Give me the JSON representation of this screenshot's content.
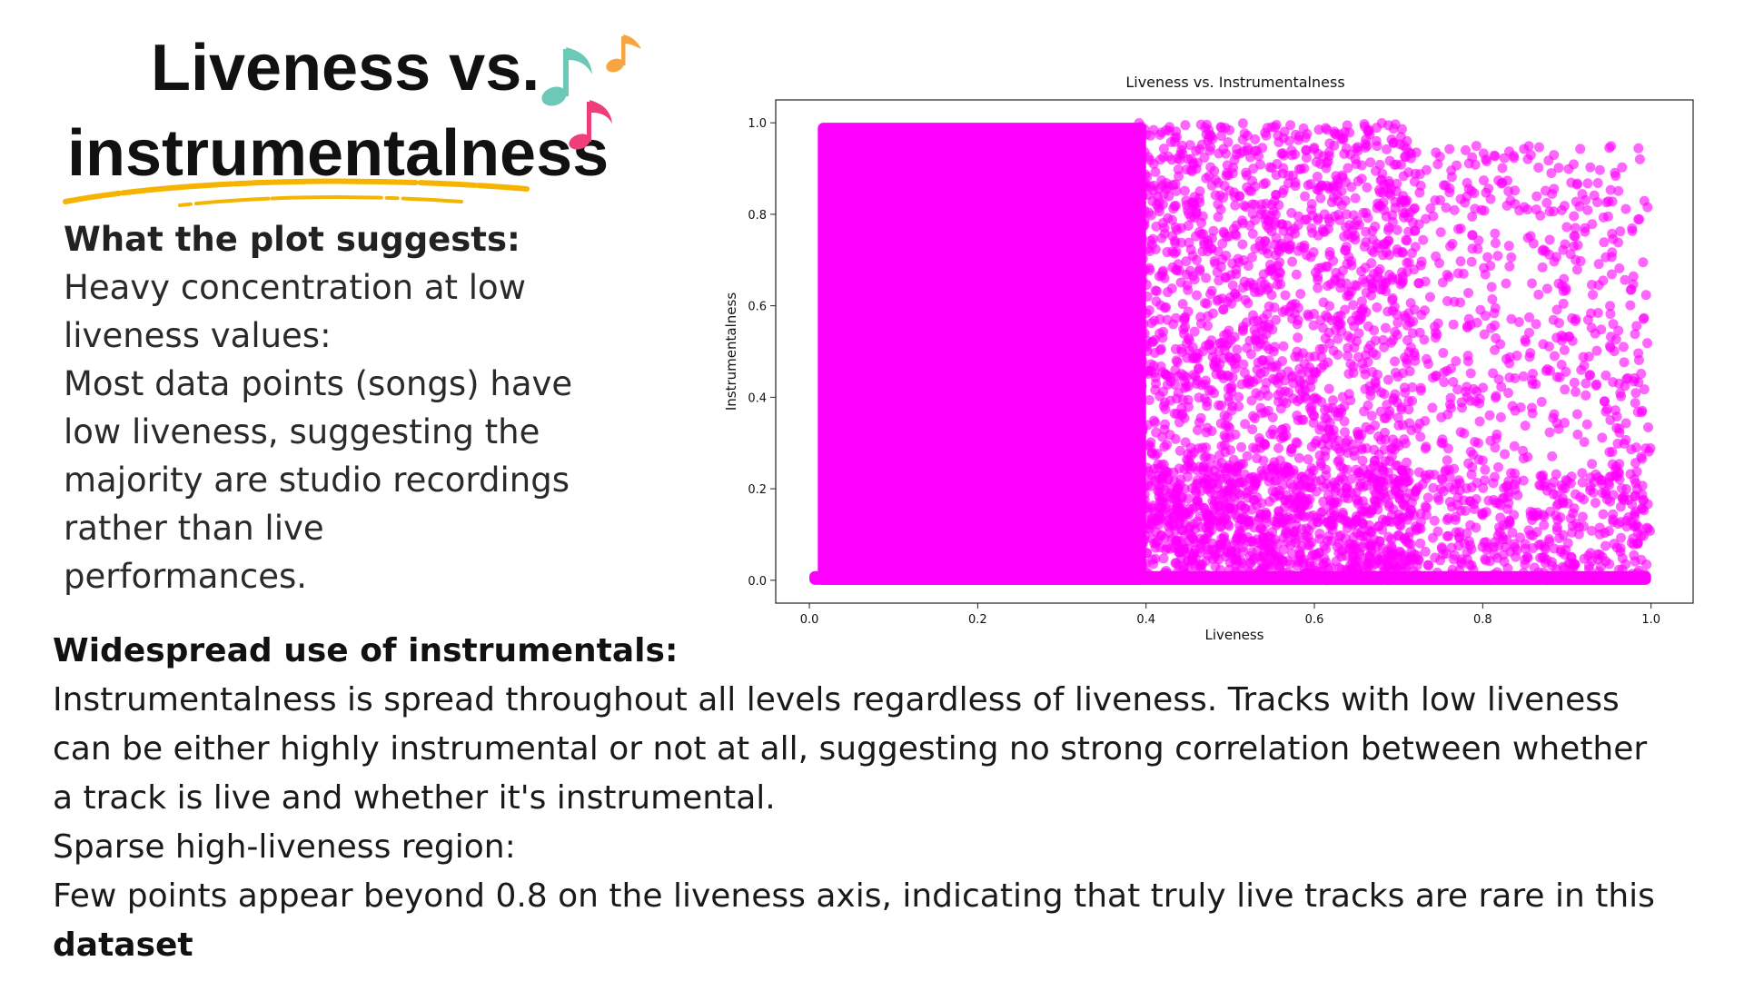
{
  "title": {
    "line1": "Liveness vs.",
    "line2": "instrumentalness",
    "icons": [
      "music-notes-icon"
    ],
    "swoosh_color": "#f4b400"
  },
  "plot_suggests": {
    "heading": "What the plot suggests:",
    "lines": [
      "Heavy concentration at low",
      "liveness values:",
      "Most data points (songs) have",
      "low liveness, suggesting the",
      "majority are studio recordings",
      "rather than live",
      "performances."
    ]
  },
  "bottom": {
    "heading": "Widespread use of instrumentals:",
    "lines": [
      "Instrumentalness is spread throughout all levels regardless of liveness. Tracks with low liveness",
      "can be either highly instrumental or not at all, suggesting no strong correlation between whether",
      "a track is live and whether it's instrumental.",
      "Sparse high-liveness region:",
      "Few points appear beyond 0.8 on the liveness axis, indicating that truly live tracks are rare in this"
    ],
    "last_bold": "dataset"
  },
  "chart_data": {
    "type": "scatter",
    "title": "Liveness vs. Instrumentalness",
    "xlabel": "Liveness",
    "ylabel": "Instrumentalness",
    "xlim": [
      -0.04,
      1.05
    ],
    "ylim": [
      -0.05,
      1.05
    ],
    "xticks": [
      "0.0",
      "0.2",
      "0.4",
      "0.6",
      "0.8",
      "1.0"
    ],
    "yticks": [
      "0.0",
      "0.2",
      "0.4",
      "0.6",
      "0.8",
      "1.0"
    ],
    "color": "#ff00ff",
    "grid": false,
    "dense_regions": [
      {
        "x_range": [
          0.01,
          0.4
        ],
        "y_range": [
          0.0,
          1.0
        ],
        "density": "saturated"
      },
      {
        "x_range": [
          0.0,
          1.0
        ],
        "y_range": [
          0.0,
          0.02
        ],
        "density": "saturated"
      }
    ],
    "sparse_regions": [
      {
        "x_range": [
          0.38,
          0.72
        ],
        "y_range": [
          0.0,
          1.0
        ],
        "density": "high"
      },
      {
        "x_range": [
          0.72,
          1.0
        ],
        "y_range": [
          0.0,
          0.95
        ],
        "density": "medium"
      }
    ]
  }
}
